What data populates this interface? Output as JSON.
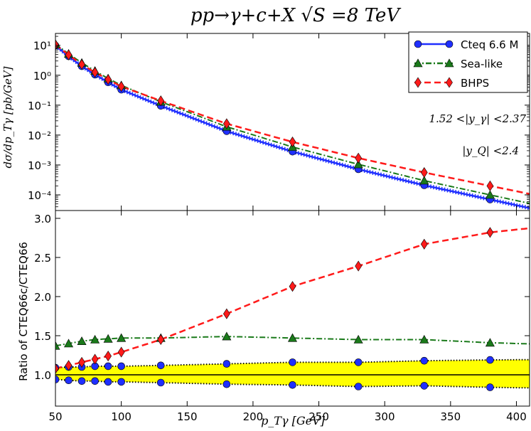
{
  "title": "pp→γ+c+X     √S =8 TeV",
  "colors": {
    "cteq": "#1f2fff",
    "sea": "#1a7a1a",
    "bhps": "#ff1a1a",
    "band": "#ffff00",
    "axis": "#000000"
  },
  "chart_data": [
    {
      "type": "line",
      "panel": "top",
      "yscale": "log",
      "xlim": [
        50,
        410
      ],
      "ylim": [
        3e-05,
        25
      ],
      "ylabel": "dσ/dp_Tγ [pb/GeV]",
      "ytick_values": [
        0.0001,
        0.001,
        0.01,
        0.1,
        1,
        10
      ],
      "ytick_labels": [
        "10⁻⁴",
        "10⁻³",
        "10⁻²",
        "10⁻¹",
        "10⁰",
        "10¹"
      ],
      "annotations": [
        "1.52 <|y_γ| <2.37",
        "|y_Q| <2.4"
      ],
      "legend": [
        "Cteq 6.6 M",
        "Sea-like",
        "BHPS"
      ],
      "series": [
        {
          "name": "Cteq 6.6 M",
          "x": [
            50,
            60,
            70,
            80,
            90,
            100,
            130,
            180,
            230,
            280,
            330,
            380
          ],
          "values": [
            9.8,
            4.3,
            2.0,
            1.05,
            0.58,
            0.33,
            0.095,
            0.0135,
            0.0028,
            0.00072,
            0.00021,
            7e-05
          ]
        },
        {
          "name": "Sea-like",
          "x": [
            50,
            60,
            70,
            80,
            90,
            100,
            130,
            180,
            230,
            280,
            330,
            380
          ],
          "values": [
            11.0,
            5.2,
            2.6,
            1.4,
            0.78,
            0.46,
            0.13,
            0.019,
            0.004,
            0.00105,
            0.0003,
            0.0001
          ]
        },
        {
          "name": "BHPS",
          "x": [
            50,
            60,
            70,
            80,
            90,
            100,
            130,
            180,
            230,
            280,
            330,
            380
          ],
          "values": [
            10.5,
            4.8,
            2.3,
            1.25,
            0.72,
            0.42,
            0.14,
            0.024,
            0.0059,
            0.0017,
            0.00056,
            0.0002
          ]
        }
      ]
    },
    {
      "type": "line",
      "panel": "bottom",
      "xlim": [
        50,
        410
      ],
      "ylim": [
        0.6,
        3.1
      ],
      "xlabel": "p_Tγ [GeV]",
      "ylabel": "Ratio of CTEQ66c/CTEQ66",
      "xtick_values": [
        50,
        100,
        150,
        200,
        250,
        300,
        350,
        400
      ],
      "ytick_values": [
        1.0,
        1.5,
        2.0,
        2.5,
        3.0
      ],
      "series": [
        {
          "name": "Band upper",
          "x": [
            50,
            60,
            70,
            80,
            90,
            100,
            130,
            180,
            230,
            280,
            330,
            380
          ],
          "values": [
            1.09,
            1.1,
            1.1,
            1.11,
            1.11,
            1.11,
            1.12,
            1.14,
            1.16,
            1.16,
            1.18,
            1.19
          ]
        },
        {
          "name": "Band lower",
          "x": [
            50,
            60,
            70,
            80,
            90,
            100,
            130,
            180,
            230,
            280,
            330,
            380
          ],
          "values": [
            0.94,
            0.93,
            0.92,
            0.92,
            0.91,
            0.91,
            0.9,
            0.88,
            0.87,
            0.85,
            0.86,
            0.84
          ]
        },
        {
          "name": "Sea-like",
          "x": [
            50,
            60,
            70,
            80,
            90,
            100,
            130,
            180,
            230,
            280,
            330,
            380
          ],
          "values": [
            1.37,
            1.4,
            1.43,
            1.45,
            1.46,
            1.47,
            1.47,
            1.49,
            1.47,
            1.45,
            1.45,
            1.41
          ]
        },
        {
          "name": "BHPS",
          "x": [
            50,
            60,
            70,
            80,
            90,
            100,
            130,
            180,
            230,
            280,
            330,
            380
          ],
          "values": [
            1.08,
            1.12,
            1.16,
            1.2,
            1.24,
            1.29,
            1.45,
            1.78,
            2.13,
            2.39,
            2.67,
            2.82
          ]
        }
      ]
    }
  ]
}
